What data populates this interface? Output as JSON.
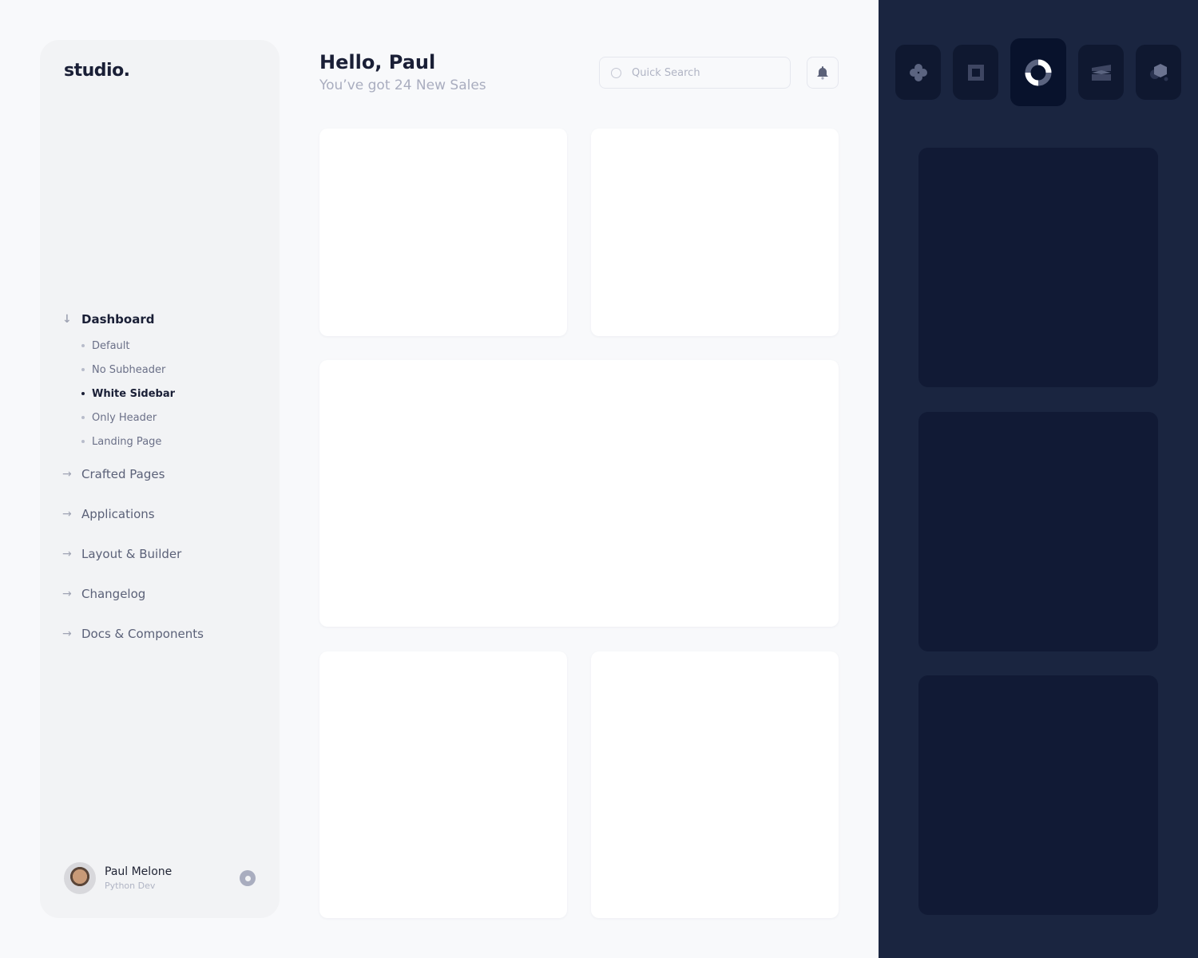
{
  "sidebar": {
    "logo": "studio.",
    "nav": [
      {
        "label": "Dashboard",
        "icon": "arrow-down-icon",
        "expanded": true,
        "children": [
          {
            "label": "Default"
          },
          {
            "label": "No Subheader"
          },
          {
            "label": "White Sidebar",
            "active": true
          },
          {
            "label": "Only Header"
          },
          {
            "label": "Landing Page"
          }
        ]
      },
      {
        "label": "Crafted Pages",
        "icon": "arrow-right-icon"
      },
      {
        "label": "Applications",
        "icon": "arrow-right-icon"
      },
      {
        "label": "Layout & Builder",
        "icon": "arrow-right-icon"
      },
      {
        "label": "Changelog",
        "icon": "arrow-right-icon"
      },
      {
        "label": "Docs & Components",
        "icon": "arrow-right-icon"
      }
    ],
    "user": {
      "name": "Paul Melone",
      "role": "Python Dev"
    }
  },
  "header": {
    "greeting": "Hello, Paul",
    "subtitle": "You’ve got 24 New Sales",
    "search_placeholder": "Quick Search"
  },
  "right_panel": {
    "apps": [
      "flower-icon",
      "square-frame-icon",
      "ring-icon",
      "stripes-icon",
      "hexagon-icon"
    ],
    "active_app": 2
  },
  "colors": {
    "accent_dark": "#1a2540",
    "card": "#ffffff",
    "sidebar": "#f2f3f5"
  }
}
